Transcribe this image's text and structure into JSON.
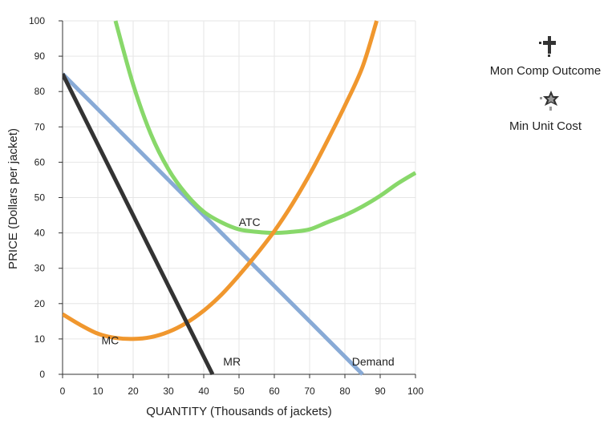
{
  "chart_data": {
    "type": "line",
    "title": "",
    "xlabel": "QUANTITY (Thousands of jackets)",
    "ylabel": "PRICE (Dollars per jacket)",
    "xlim": [
      0,
      100
    ],
    "ylim": [
      0,
      100
    ],
    "x_ticks": [
      0,
      10,
      20,
      30,
      40,
      50,
      60,
      70,
      80,
      90,
      100
    ],
    "y_ticks": [
      0,
      10,
      20,
      30,
      40,
      50,
      60,
      70,
      80,
      90,
      100
    ],
    "grid": true,
    "series": [
      {
        "name": "Demand",
        "label": "Demand",
        "color": "#88aad6",
        "x": [
          0,
          85
        ],
        "y": [
          85,
          0
        ]
      },
      {
        "name": "MR",
        "label": "MR",
        "color": "#333333",
        "x": [
          0,
          42.5
        ],
        "y": [
          85,
          0
        ]
      },
      {
        "name": "ATC",
        "label": "ATC",
        "color": "#88d86a",
        "x": [
          15,
          20,
          25,
          30,
          35,
          40,
          45,
          50,
          55,
          60,
          65,
          70,
          75,
          80,
          85,
          90,
          95,
          100
        ],
        "y": [
          100,
          82,
          68,
          58,
          51,
          46,
          43,
          41,
          40.3,
          40,
          40.3,
          41,
          43,
          45,
          47.5,
          50.5,
          54,
          57
        ]
      },
      {
        "name": "MC",
        "label": "MC",
        "color": "#f0972e",
        "x": [
          0,
          5,
          10,
          15,
          20,
          25,
          30,
          35,
          40,
          45,
          50,
          55,
          60,
          65,
          70,
          75,
          80,
          85,
          89
        ],
        "y": [
          17,
          14,
          11.5,
          10.3,
          10,
          10.5,
          12,
          14.5,
          18,
          22.5,
          28,
          34,
          40.5,
          48,
          56.5,
          66,
          76,
          87,
          100
        ]
      }
    ],
    "legend": {
      "placement": "right",
      "items": [
        {
          "label": "Mon Comp Outcome",
          "icon": "dark-plus-marker-icon",
          "color": "#333333"
        },
        {
          "label": "Min Unit Cost",
          "icon": "gray-star-marker-icon",
          "color": "#555555"
        }
      ]
    }
  }
}
